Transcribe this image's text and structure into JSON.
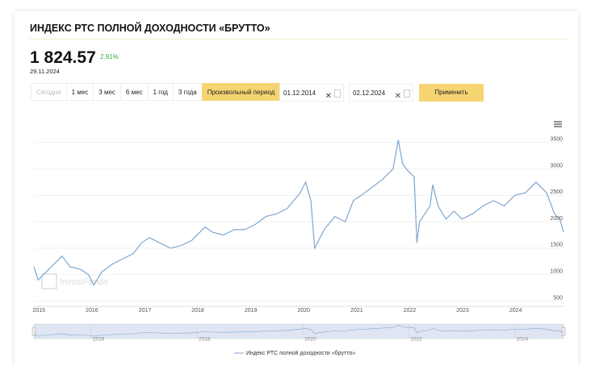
{
  "header": {
    "price": "1 824.57",
    "change": "2.91%",
    "date": "29.11.2024"
  },
  "controls": {
    "periods": [
      "Сегодня",
      "1 мес",
      "3 мес",
      "6 мес",
      "1 год",
      "3 года",
      "Произвольный период"
    ],
    "disabled_period": 0,
    "active_period": 6,
    "date_from": "01.12.2014",
    "date_to": "02.12.2024",
    "apply": "Применить"
  },
  "chart_data": {
    "type": "line",
    "title": "ИНДЕКС РТС ПОЛНОЙ ДОХОДНОСТИ «БРУТТО»",
    "watermark": "InvestFunds",
    "x": [
      2014.92,
      2015.0,
      2015.1,
      2015.3,
      2015.45,
      2015.6,
      2015.8,
      2015.95,
      2016.05,
      2016.2,
      2016.4,
      2016.6,
      2016.8,
      2016.95,
      2017.1,
      2017.3,
      2017.5,
      2017.7,
      2017.9,
      2018.15,
      2018.3,
      2018.5,
      2018.7,
      2018.9,
      2019.1,
      2019.3,
      2019.5,
      2019.7,
      2019.95,
      2020.05,
      2020.15,
      2020.22,
      2020.4,
      2020.6,
      2020.8,
      2020.95,
      2021.1,
      2021.3,
      2021.5,
      2021.7,
      2021.8,
      2021.88,
      2021.95,
      2022.1,
      2022.15,
      2022.2,
      2022.4,
      2022.45,
      2022.55,
      2022.7,
      2022.85,
      2023.0,
      2023.2,
      2023.4,
      2023.6,
      2023.8,
      2024.0,
      2024.2,
      2024.4,
      2024.6,
      2024.75,
      2024.85,
      2024.92
    ],
    "series": [
      {
        "name": "Индекс РТС полной доходности «брутто»",
        "color": "#7ea6cf",
        "values": [
          1150,
          900,
          1000,
          1200,
          1350,
          1150,
          1100,
          1000,
          800,
          1050,
          1200,
          1300,
          1400,
          1600,
          1700,
          1600,
          1500,
          1550,
          1650,
          1900,
          1800,
          1750,
          1850,
          1850,
          1950,
          2100,
          2150,
          2250,
          2550,
          2750,
          2400,
          1500,
          1850,
          2100,
          2000,
          2400,
          2500,
          2650,
          2800,
          3000,
          3550,
          3100,
          3000,
          2850,
          1600,
          2000,
          2300,
          2700,
          2300,
          2050,
          2200,
          2050,
          2150,
          2300,
          2400,
          2300,
          2500,
          2550,
          2750,
          2550,
          2150,
          2050,
          1800
        ]
      }
    ],
    "xlim": [
      2014.92,
      2024.92
    ],
    "xticks": [
      2015,
      2016,
      2017,
      2018,
      2019,
      2020,
      2021,
      2022,
      2023,
      2024
    ],
    "ylim": [
      400,
      4000
    ],
    "yticks": [
      500,
      1000,
      1500,
      2000,
      2500,
      3000,
      3500
    ],
    "grid": true,
    "navigator_ticks": [
      2016,
      2018,
      2020,
      2022,
      2024
    ]
  }
}
